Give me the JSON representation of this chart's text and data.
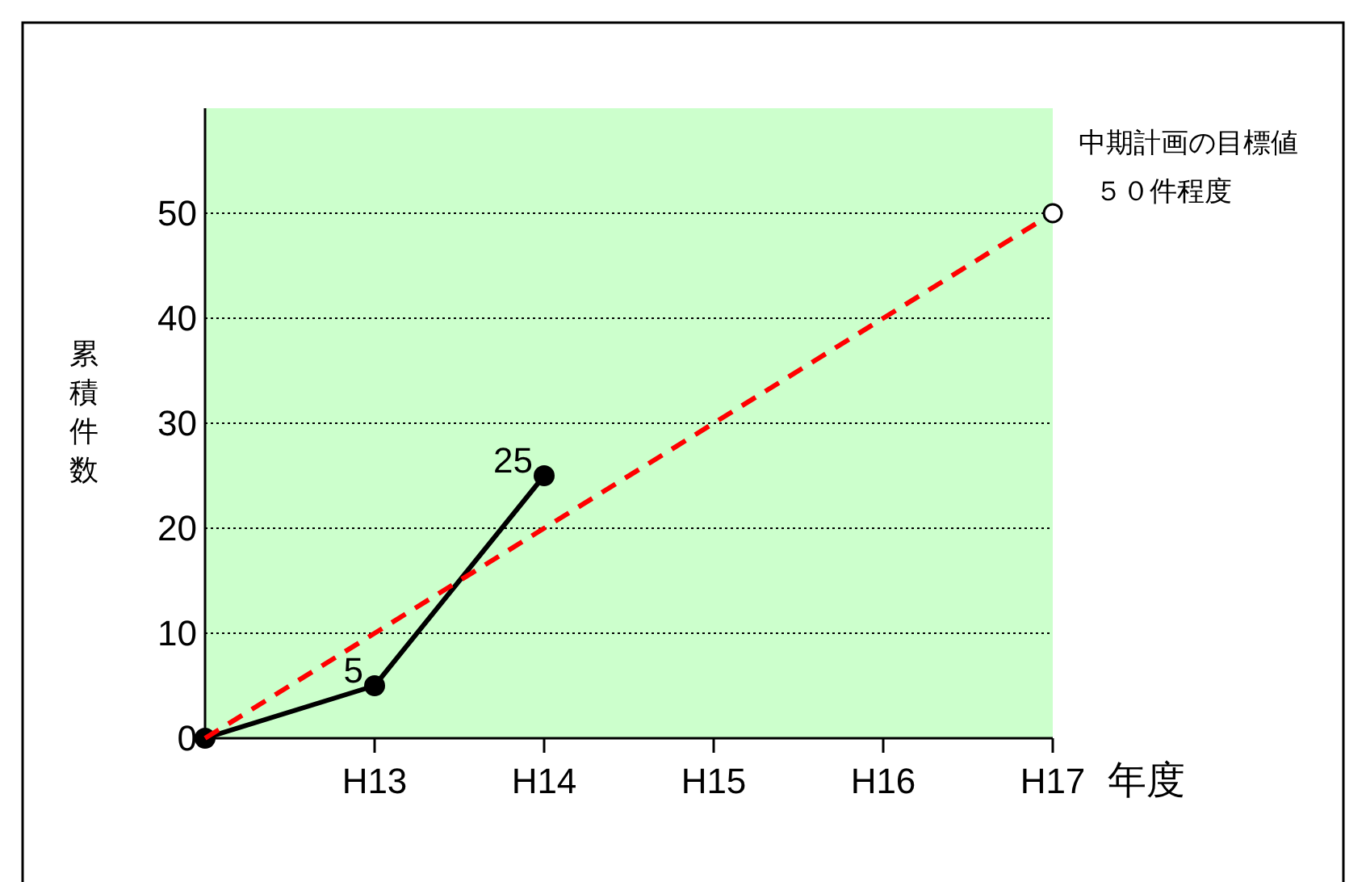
{
  "chart_data": {
    "type": "line",
    "categories": [
      null,
      "H13",
      "H14",
      "H15",
      "H16",
      "H17"
    ],
    "xlabel": "年度",
    "ylabel": "累積件数",
    "ylim": [
      0,
      60
    ],
    "yticks": [
      0,
      10,
      20,
      30,
      40,
      50
    ],
    "grid": "y",
    "series": [
      {
        "color": "#000000",
        "values": [
          0,
          5,
          25,
          null,
          null,
          null
        ],
        "marker": "circle",
        "line_style": "solid",
        "value_labels": [
          null,
          "5",
          "25",
          null,
          null,
          null
        ]
      },
      {
        "color": "#ff0000",
        "values": [
          0,
          10,
          20,
          30,
          40,
          50
        ],
        "marker": "none",
        "line_style": "dashed"
      }
    ],
    "annotations": [
      {
        "text": "中期計画の目標値",
        "x": "H17",
        "y": 50
      },
      "５０件程度"
    ]
  }
}
